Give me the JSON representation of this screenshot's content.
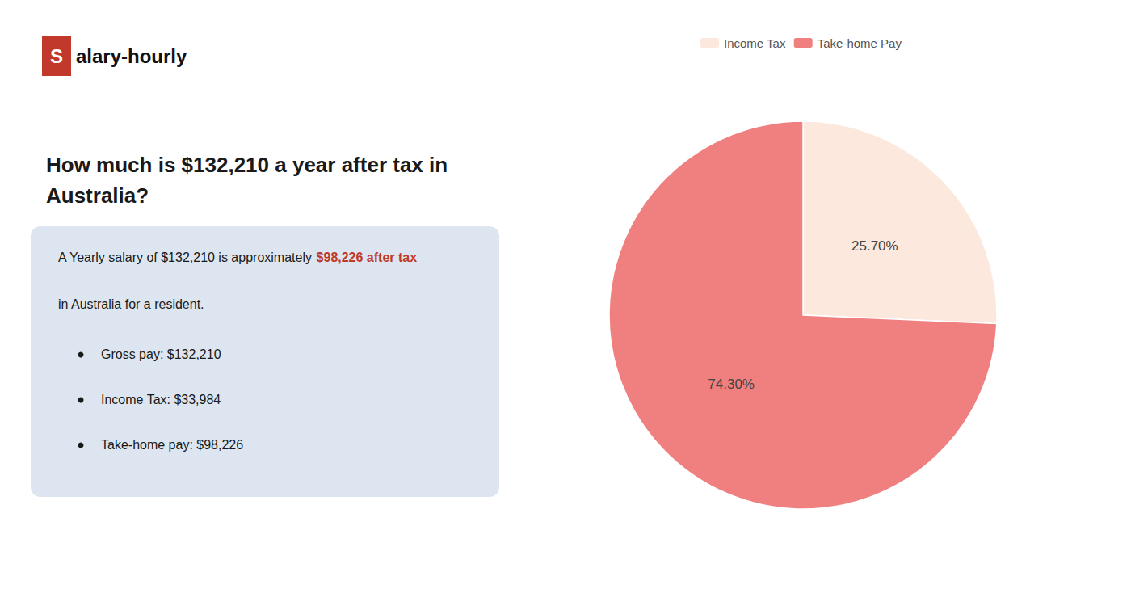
{
  "chart_data": {
    "type": "pie",
    "title": "How much is $132,210 a year after tax in\nAustralia?",
    "categories": [
      "Income Tax",
      "Take-home Pay"
    ],
    "values": [
      25.7,
      74.3
    ],
    "value_labels": [
      "25.70%",
      "74.30%"
    ],
    "colors": [
      "#fce8dc",
      "#f08080"
    ],
    "data_labels": true,
    "legend": "top",
    "annotations": [
      "S",
      "alary-hourly",
      "A Yearly salary of $132,210 is approximately ",
      "$98,226 after tax",
      "in Australia for a resident.",
      "Gross pay: $132,210",
      "Income Tax: $33,984",
      "Take-home pay: $98,226"
    ]
  }
}
